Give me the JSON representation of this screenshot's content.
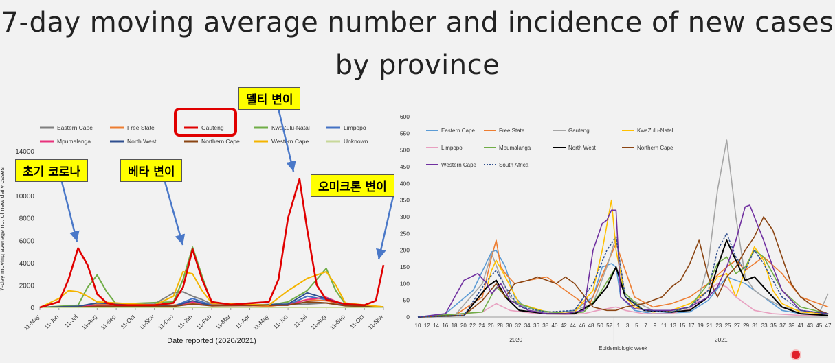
{
  "title": {
    "line1": "7-day moving average number and incidence of new cases",
    "line2": "by province"
  },
  "callouts": {
    "early": "초기 코로나",
    "beta": "베타 변이",
    "delta": "델티 변이",
    "omicron": "오미크론 변이"
  },
  "colors": {
    "highlight": "#e00000",
    "callout_bg": "#ffff00",
    "arrow": "#4a78c8"
  },
  "chart_data": [
    {
      "type": "line",
      "title": "",
      "xlabel": "Date reported (2020/2021)",
      "ylabel": "7-day moving average no. of new daily cases",
      "ylim": [
        0,
        14000
      ],
      "yticks": [
        0,
        2000,
        4000,
        6000,
        8000,
        10000,
        12000,
        14000
      ],
      "xticks": [
        "11-May",
        "11-Jun",
        "11-Jul",
        "11-Aug",
        "11-Sep",
        "11-Oct",
        "11-Nov",
        "11-Dec",
        "11-Jan",
        "11-Feb",
        "11-Mar",
        "11-Apr",
        "11-May",
        "11-Jun",
        "11-Jul",
        "11-Aug",
        "11-Sep",
        "11-Oct",
        "11-Nov"
      ],
      "x_index_note": "x values are month index from 11-May-2020 (0) to 11-Nov-2021 (18)",
      "series": [
        {
          "name": "Eastern Cape",
          "color": "#7f7f7f",
          "x": [
            0,
            2,
            3,
            5,
            6,
            7,
            7.5,
            8,
            8.5,
            9,
            11,
            13,
            14,
            15,
            16,
            18
          ],
          "y": [
            0,
            100,
            400,
            250,
            300,
            1300,
            1400,
            1000,
            700,
            300,
            150,
            250,
            300,
            400,
            150,
            50
          ]
        },
        {
          "name": "Free State",
          "color": "#ed7d31",
          "x": [
            0,
            2,
            3,
            4,
            7,
            8,
            9,
            12,
            13,
            14,
            15,
            16,
            18
          ],
          "y": [
            0,
            100,
            250,
            300,
            200,
            400,
            300,
            100,
            300,
            700,
            600,
            200,
            50
          ]
        },
        {
          "name": "Gauteng",
          "color": "#e00000",
          "x": [
            0,
            1,
            1.5,
            2,
            2.5,
            3,
            3.5,
            4,
            6,
            7,
            7.5,
            8,
            8.5,
            9,
            10,
            12,
            12.5,
            13,
            13.6,
            14,
            14.5,
            15,
            16,
            17,
            17.6,
            18
          ],
          "y": [
            0,
            500,
            2500,
            5300,
            3800,
            1200,
            400,
            200,
            200,
            400,
            1800,
            5200,
            2500,
            500,
            250,
            500,
            2500,
            8000,
            11500,
            7000,
            2000,
            700,
            300,
            200,
            600,
            3800
          ]
        },
        {
          "name": "KwaZulu-Natal",
          "color": "#70ad47",
          "x": [
            0,
            2,
            2.5,
            3,
            3.5,
            4,
            7,
            7.5,
            8,
            8.5,
            9,
            12,
            13,
            14,
            14.5,
            15,
            15.5,
            16,
            18
          ],
          "y": [
            0,
            200,
            1800,
            2900,
            1400,
            300,
            500,
            2500,
            5400,
            2800,
            400,
            200,
            500,
            1500,
            2500,
            3500,
            1500,
            300,
            50
          ]
        },
        {
          "name": "Limpopo",
          "color": "#4472c4",
          "x": [
            0,
            2,
            3,
            7,
            8,
            9,
            13,
            14,
            15,
            16,
            18
          ],
          "y": [
            0,
            50,
            200,
            100,
            800,
            200,
            200,
            1000,
            700,
            200,
            50
          ]
        },
        {
          "name": "Mpumalanga",
          "color": "#e8327c",
          "x": [
            0,
            2,
            3,
            7,
            8,
            9,
            13,
            14,
            15,
            16,
            18
          ],
          "y": [
            0,
            50,
            200,
            100,
            500,
            150,
            200,
            700,
            900,
            200,
            50
          ]
        },
        {
          "name": "North West",
          "color": "#2f4f8f",
          "x": [
            0,
            2,
            3,
            7,
            8,
            9,
            13,
            14,
            15,
            16,
            18
          ],
          "y": [
            0,
            100,
            400,
            100,
            600,
            150,
            300,
            1300,
            800,
            200,
            50
          ]
        },
        {
          "name": "Northern Cape",
          "color": "#8b4513",
          "x": [
            0,
            2,
            3,
            7,
            8,
            9,
            13,
            14,
            15,
            16,
            18
          ],
          "y": [
            0,
            20,
            100,
            100,
            300,
            150,
            200,
            500,
            400,
            150,
            50
          ]
        },
        {
          "name": "Western Cape",
          "color": "#f4b400",
          "x": [
            0,
            1,
            1.5,
            2,
            2.5,
            3,
            6,
            7,
            7.5,
            8,
            8.5,
            9,
            12,
            13,
            14,
            15,
            15.5,
            16,
            18
          ],
          "y": [
            0,
            800,
            1500,
            1400,
            1000,
            500,
            200,
            1000,
            3200,
            3000,
            1500,
            400,
            200,
            1500,
            2600,
            3200,
            2000,
            400,
            50
          ]
        },
        {
          "name": "Unknown",
          "color": "#c8d89a",
          "x": [
            0,
            18
          ],
          "y": [
            0,
            0
          ]
        }
      ]
    },
    {
      "type": "line",
      "title": "",
      "xlabel": "Epidemiologic week",
      "ylabel": "",
      "ylim": [
        0,
        600
      ],
      "yticks": [
        0,
        50,
        100,
        150,
        200,
        250,
        300,
        350,
        400,
        450,
        500,
        550,
        600
      ],
      "xticks": [
        "10",
        "12",
        "14",
        "16",
        "18",
        "20",
        "22",
        "24",
        "26",
        "28",
        "30",
        "32",
        "34",
        "36",
        "38",
        "40",
        "42",
        "44",
        "46",
        "48",
        "50",
        "52",
        "1",
        "3",
        "5",
        "7",
        "9",
        "11",
        "13",
        "15",
        "17",
        "19",
        "21",
        "23",
        "25",
        "27",
        "29",
        "31",
        "33",
        "35",
        "37",
        "39",
        "41",
        "43",
        "45",
        "47"
      ],
      "year_labels": [
        "2020",
        "2021"
      ],
      "x_index_note": "x values are sequential week index: 0 = week 10 of 2020, 43 = week 1 of 2021, 89 = week 47 of 2021",
      "series": [
        {
          "name": "Eastern Cape",
          "color": "#5b9bd5",
          "x": [
            0,
            6,
            12,
            16,
            17,
            19,
            21,
            24,
            28,
            34,
            38,
            40,
            42,
            43,
            44,
            47,
            51,
            59,
            63,
            67,
            71,
            75,
            79,
            83,
            89
          ],
          "y": [
            0,
            10,
            80,
            195,
            200,
            150,
            60,
            20,
            10,
            20,
            60,
            150,
            160,
            150,
            60,
            20,
            10,
            15,
            50,
            120,
            100,
            60,
            20,
            10,
            5
          ]
        },
        {
          "name": "Free State",
          "color": "#ed7d31",
          "x": [
            0,
            8,
            14,
            16,
            17,
            18,
            19,
            21,
            24,
            28,
            32,
            37,
            43,
            47,
            51,
            55,
            59,
            63,
            67,
            69,
            71,
            73,
            75,
            79,
            83,
            89
          ],
          "y": [
            0,
            5,
            60,
            180,
            230,
            150,
            130,
            100,
            110,
            120,
            80,
            30,
            220,
            60,
            30,
            40,
            60,
            100,
            150,
            170,
            140,
            160,
            180,
            130,
            60,
            30
          ]
        },
        {
          "name": "Gauteng",
          "color": "#a5a5a5",
          "x": [
            0,
            8,
            14,
            16,
            18,
            20,
            24,
            32,
            38,
            41,
            43,
            45,
            51,
            55,
            59,
            61,
            63,
            65,
            67,
            69,
            71,
            73,
            75,
            79,
            83,
            87,
            89
          ],
          "y": [
            0,
            5,
            100,
            190,
            120,
            60,
            20,
            10,
            40,
            150,
            240,
            60,
            20,
            20,
            30,
            60,
            160,
            380,
            530,
            300,
            120,
            80,
            60,
            30,
            20,
            10,
            70
          ]
        },
        {
          "name": "KwaZulu-Natal",
          "color": "#ffc000",
          "x": [
            0,
            10,
            15,
            16,
            17,
            19,
            22,
            28,
            34,
            38,
            40,
            42,
            43,
            45,
            47,
            51,
            55,
            59,
            63,
            65,
            67,
            69,
            71,
            73,
            75,
            77,
            79,
            83,
            89
          ],
          "y": [
            0,
            5,
            90,
            140,
            170,
            120,
            40,
            15,
            15,
            80,
            200,
            350,
            200,
            60,
            30,
            15,
            20,
            40,
            80,
            120,
            130,
            60,
            140,
            210,
            170,
            80,
            40,
            15,
            10
          ]
        },
        {
          "name": "Limpopo",
          "color": "#e8a0c0",
          "x": [
            0,
            14,
            17,
            20,
            26,
            32,
            36,
            39,
            43,
            45,
            49,
            55,
            59,
            63,
            65,
            67,
            69,
            71,
            73,
            77,
            83,
            89
          ],
          "y": [
            0,
            15,
            40,
            20,
            10,
            8,
            10,
            20,
            30,
            20,
            10,
            10,
            25,
            80,
            100,
            90,
            60,
            40,
            20,
            10,
            5,
            5
          ]
        },
        {
          "name": "Mpumalanga",
          "color": "#70ad47",
          "x": [
            0,
            14,
            17,
            20,
            26,
            32,
            36,
            39,
            43,
            45,
            49,
            55,
            59,
            63,
            65,
            67,
            69,
            71,
            73,
            75,
            79,
            83,
            89
          ],
          "y": [
            0,
            15,
            90,
            50,
            20,
            10,
            15,
            60,
            150,
            70,
            20,
            15,
            30,
            100,
            160,
            180,
            130,
            150,
            200,
            180,
            80,
            30,
            10
          ]
        },
        {
          "name": "North West",
          "color": "#000000",
          "x": [
            0,
            10,
            15,
            17,
            19,
            22,
            28,
            34,
            38,
            41,
            43,
            45,
            49,
            55,
            59,
            63,
            65,
            67,
            69,
            71,
            73,
            75,
            77,
            79,
            83,
            89
          ],
          "y": [
            0,
            5,
            90,
            110,
            60,
            20,
            10,
            10,
            40,
            90,
            150,
            60,
            20,
            15,
            20,
            60,
            150,
            230,
            170,
            110,
            120,
            90,
            60,
            30,
            10,
            5
          ]
        },
        {
          "name": "Northern Cape",
          "color": "#8b4513",
          "x": [
            0,
            10,
            14,
            17,
            19,
            21,
            24,
            26,
            28,
            30,
            32,
            34,
            38,
            41,
            43,
            45,
            49,
            53,
            55,
            57,
            59,
            61,
            63,
            65,
            67,
            69,
            71,
            73,
            75,
            77,
            79,
            81,
            83,
            87,
            89
          ],
          "y": [
            0,
            5,
            50,
            100,
            60,
            100,
            110,
            120,
            110,
            100,
            120,
            100,
            30,
            20,
            20,
            30,
            40,
            60,
            90,
            110,
            160,
            230,
            120,
            60,
            120,
            150,
            200,
            240,
            300,
            260,
            180,
            100,
            60,
            20,
            10
          ]
        },
        {
          "name": "Western Cape",
          "color": "#7030a0",
          "x": [
            0,
            6,
            10,
            13,
            15,
            16,
            18,
            20,
            24,
            28,
            32,
            36,
            38,
            40,
            41,
            42,
            43,
            44,
            47,
            51,
            55,
            59,
            63,
            65,
            67,
            69,
            71,
            72,
            73,
            75,
            77,
            79,
            83,
            89
          ],
          "y": [
            0,
            10,
            110,
            130,
            100,
            70,
            100,
            50,
            20,
            10,
            10,
            20,
            200,
            280,
            290,
            320,
            320,
            60,
            25,
            20,
            20,
            30,
            60,
            90,
            150,
            230,
            330,
            335,
            300,
            230,
            150,
            80,
            20,
            10
          ]
        },
        {
          "name": "South Africa",
          "color": "#2f4f8f",
          "dashed": true,
          "x": [
            0,
            10,
            15,
            17,
            19,
            22,
            28,
            34,
            38,
            41,
            43,
            45,
            49,
            55,
            59,
            63,
            65,
            67,
            69,
            71,
            73,
            75,
            79,
            83,
            89
          ],
          "y": [
            0,
            5,
            110,
            140,
            90,
            30,
            15,
            20,
            100,
            200,
            240,
            60,
            20,
            15,
            30,
            80,
            200,
            250,
            180,
            140,
            200,
            160,
            60,
            20,
            10
          ]
        }
      ]
    }
  ]
}
